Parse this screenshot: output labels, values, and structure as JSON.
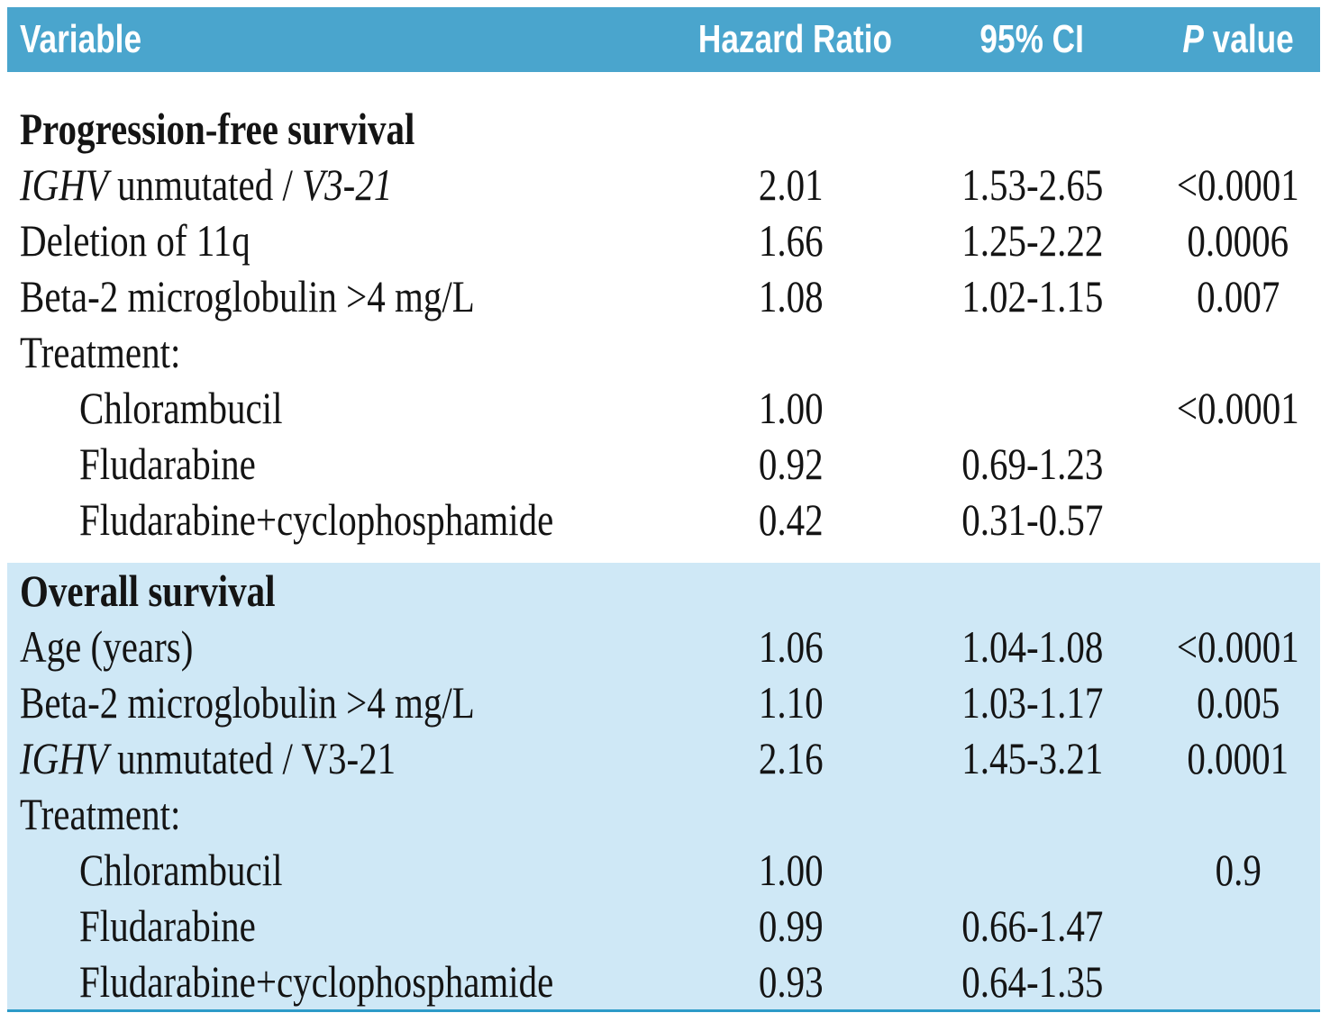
{
  "colors": {
    "header_bg": "#4aa5cd",
    "section_bg": "#cfe8f6",
    "bottom_rule": "#2d9bc8",
    "header_text": "#ffffff",
    "body_text": "#141414"
  },
  "header": {
    "variable": "Variable",
    "hazard_ratio": "Hazard Ratio",
    "ci": "95% CI",
    "p_italic": "P",
    "p_rest": " value"
  },
  "sections": [
    {
      "title": "Progression-free survival",
      "rows": [
        {
          "parts": {
            "i1": "IGHV",
            "r1": " unmutated / ",
            "i2": "V3-21"
          },
          "hr": "2.01",
          "ci": "1.53-2.65",
          "p": "<0.0001"
        },
        {
          "label": "Deletion of 11q",
          "hr": "1.66",
          "ci": "1.25-2.22",
          "p": "0.0006"
        },
        {
          "label": "Beta-2 microglobulin >4 mg/L",
          "hr": "1.08",
          "ci": "1.02-1.15",
          "p": "0.007"
        },
        {
          "label": "Treatment:",
          "hr": "",
          "ci": "",
          "p": ""
        },
        {
          "label": "Chlorambucil",
          "hr": "1.00",
          "ci": "",
          "p": "<0.0001"
        },
        {
          "label": "Fludarabine",
          "hr": "0.92",
          "ci": "0.69-1.23",
          "p": ""
        },
        {
          "label": "Fludarabine+cyclophosphamide",
          "hr": "0.42",
          "ci": "0.31-0.57",
          "p": ""
        }
      ]
    },
    {
      "title": "Overall survival",
      "rows": [
        {
          "label": "Age (years)",
          "hr": "1.06",
          "ci": "1.04-1.08",
          "p": "<0.0001"
        },
        {
          "label": "Beta-2 microglobulin >4 mg/L",
          "hr": "1.10",
          "ci": "1.03-1.17",
          "p": "0.005"
        },
        {
          "parts": {
            "i1": "IGHV",
            "r1": " unmutated / V3-21"
          },
          "hr": "2.16",
          "ci": "1.45-3.21",
          "p": "0.0001"
        },
        {
          "label": "Treatment:",
          "hr": "",
          "ci": "",
          "p": ""
        },
        {
          "label": "Chlorambucil",
          "hr": "1.00",
          "ci": "",
          "p": "0.9"
        },
        {
          "label": "Fludarabine",
          "hr": "0.99",
          "ci": "0.66-1.47",
          "p": ""
        },
        {
          "label": "Fludarabine+cyclophosphamide",
          "hr": "0.93",
          "ci": "0.64-1.35",
          "p": ""
        }
      ]
    }
  ],
  "chart_data": {
    "type": "table",
    "columns": [
      "Variable",
      "Hazard Ratio",
      "95% CI",
      "P value"
    ],
    "rows": [
      [
        "Progression-free survival",
        "",
        "",
        ""
      ],
      [
        "IGHV unmutated / V3-21",
        "2.01",
        "1.53-2.65",
        "<0.0001"
      ],
      [
        "Deletion of 11q",
        "1.66",
        "1.25-2.22",
        "0.0006"
      ],
      [
        "Beta-2 microglobulin >4 mg/L",
        "1.08",
        "1.02-1.15",
        "0.007"
      ],
      [
        "Treatment:",
        "",
        "",
        ""
      ],
      [
        "Chlorambucil",
        "1.00",
        "",
        "<0.0001"
      ],
      [
        "Fludarabine",
        "0.92",
        "0.69-1.23",
        ""
      ],
      [
        "Fludarabine+cyclophosphamide",
        "0.42",
        "0.31-0.57",
        ""
      ],
      [
        "Overall survival",
        "",
        "",
        ""
      ],
      [
        "Age (years)",
        "1.06",
        "1.04-1.08",
        "<0.0001"
      ],
      [
        "Beta-2 microglobulin >4 mg/L",
        "1.10",
        "1.03-1.17",
        "0.005"
      ],
      [
        "IGHV unmutated / V3-21",
        "2.16",
        "1.45-3.21",
        "0.0001"
      ],
      [
        "Treatment:",
        "",
        "",
        ""
      ],
      [
        "Chlorambucil",
        "1.00",
        "",
        "0.9"
      ],
      [
        "Fludarabine",
        "0.99",
        "0.66-1.47",
        ""
      ],
      [
        "Fludarabine+cyclophosphamide",
        "0.93",
        "0.64-1.35",
        ""
      ]
    ],
    "layout": {
      "sections": [
        {
          "name": "Progression-free survival",
          "background": "white"
        },
        {
          "name": "Overall survival",
          "background": "light-blue"
        }
      ],
      "header_style": "white bold condensed sans on blue bar",
      "italic_terms": [
        "IGHV",
        "V3-21 (PFS row only)",
        "P (header)"
      ]
    }
  }
}
